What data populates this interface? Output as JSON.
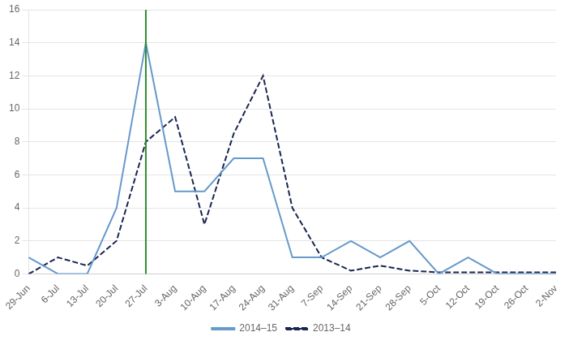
{
  "chart_data": {
    "type": "line",
    "categories": [
      "29-Jun",
      "6-Jul",
      "13-Jul",
      "20-Jul",
      "27-Jul",
      "3-Aug",
      "10-Aug",
      "17-Aug",
      "24-Aug",
      "31-Aug",
      "7-Sep",
      "14-Sep",
      "21-Sep",
      "28-Sep",
      "5-Oct",
      "12-Oct",
      "19-Oct",
      "26-Oct",
      "2-Nov"
    ],
    "series": [
      {
        "name": "2014–15",
        "color": "#6699cc",
        "line_style": "solid",
        "values": [
          1,
          0,
          0,
          4,
          14,
          5,
          5,
          7,
          7,
          1,
          1,
          2,
          1,
          2,
          0,
          1,
          0,
          0,
          0
        ]
      },
      {
        "name": "2013–14",
        "color": "#1a2550",
        "line_style": "dashed",
        "values": [
          0,
          1,
          0.5,
          2,
          8,
          9.5,
          3,
          8.5,
          12,
          4,
          1,
          0.2,
          0.5,
          0.2,
          0.1,
          0.1,
          0.1,
          0.1,
          0.1
        ]
      }
    ],
    "vlines": [
      {
        "x": "27-Jul",
        "color": "#2e8b2e"
      }
    ],
    "ylim": [
      0,
      16
    ],
    "yticks": [
      0,
      2,
      4,
      6,
      8,
      10,
      12,
      14,
      16
    ],
    "grid": true,
    "legend": "bottom"
  }
}
